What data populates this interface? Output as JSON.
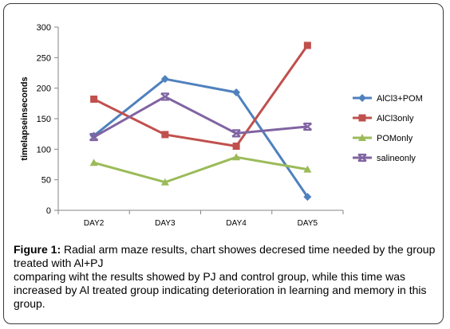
{
  "chart_data": {
    "type": "line",
    "categories": [
      "DAY2",
      "DAY3",
      "DAY4",
      "DAY5"
    ],
    "ylabel": "timelapseinseconds",
    "ylim": [
      0,
      300
    ],
    "yticks": [
      0,
      50,
      100,
      150,
      200,
      250,
      300
    ],
    "grid": false,
    "legend_position": "right",
    "series": [
      {
        "name": "AlCl3+POM",
        "values": [
          122,
          215,
          193,
          22
        ],
        "color": "#4f81bd",
        "marker": "diamond"
      },
      {
        "name": "AlCl3only",
        "values": [
          182,
          124,
          105,
          270
        ],
        "color": "#c0504d",
        "marker": "square"
      },
      {
        "name": "POMonly",
        "values": [
          78,
          46,
          87,
          67
        ],
        "color": "#9bbb59",
        "marker": "triangle"
      },
      {
        "name": "salineonly",
        "values": [
          120,
          186,
          126,
          137
        ],
        "color": "#8064a2",
        "marker": "x"
      }
    ]
  },
  "caption": {
    "label": "Figure 1:",
    "text": " Radial arm maze results, chart showes decresed time needed by the group treated with Al+PJ",
    "text2": "comparing wiht the results showed by PJ and control group, while this time was increased by Al treated group indicating deterioration in learning and memory in this group."
  }
}
